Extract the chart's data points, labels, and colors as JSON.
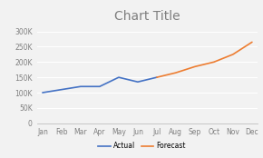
{
  "title": "Chart Title",
  "months": [
    "Jan",
    "Feb",
    "Mar",
    "Apr",
    "May",
    "Jun",
    "Jul",
    "Aug",
    "Sep",
    "Oct",
    "Nov",
    "Dec"
  ],
  "actual_x": [
    0,
    1,
    2,
    3,
    4,
    5,
    6
  ],
  "actual_y": [
    100000,
    110000,
    120000,
    120000,
    150000,
    135000,
    150000
  ],
  "forecast_x": [
    6,
    7,
    8,
    9,
    10,
    11
  ],
  "forecast_y": [
    150000,
    165000,
    185000,
    200000,
    225000,
    265000
  ],
  "actual_color": "#4472c4",
  "forecast_color": "#ed7d31",
  "ylim": [
    0,
    320000
  ],
  "yticks": [
    0,
    50000,
    100000,
    150000,
    200000,
    250000,
    300000
  ],
  "background_color": "#f2f2f2",
  "plot_bg_color": "#f2f2f2",
  "grid_color": "#ffffff",
  "title_fontsize": 10,
  "tick_fontsize": 5.5,
  "legend_fontsize": 5.5,
  "title_color": "#7f7f7f"
}
